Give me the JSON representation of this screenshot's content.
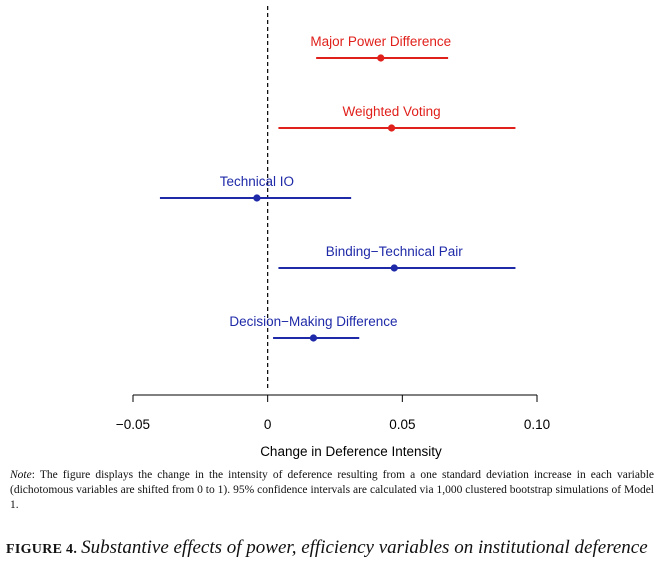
{
  "chart_data": {
    "type": "errorbar",
    "xlabel": "Change in Deference Intensity",
    "xlim": [
      -0.05,
      0.1
    ],
    "xticks": [
      -0.05,
      0,
      0.05,
      0.1
    ],
    "xtick_labels": [
      "−0.05",
      "0",
      "0.05",
      "0.10"
    ],
    "reference_line": 0,
    "series": [
      {
        "name": "Major Power Difference",
        "estimate": 0.042,
        "lower": 0.018,
        "upper": 0.067,
        "color": "#e0201b"
      },
      {
        "name": "Weighted Voting",
        "estimate": 0.046,
        "lower": 0.004,
        "upper": 0.092,
        "color": "#e0201b"
      },
      {
        "name": "Technical IO",
        "estimate": -0.004,
        "lower": -0.04,
        "upper": 0.031,
        "color": "#1f2aa8"
      },
      {
        "name": "Binding−Technical Pair",
        "estimate": 0.047,
        "lower": 0.004,
        "upper": 0.092,
        "color": "#1f2aa8"
      },
      {
        "name": "Decision−Making Difference",
        "estimate": 0.017,
        "lower": 0.002,
        "upper": 0.034,
        "color": "#1f2aa8"
      }
    ]
  },
  "note": {
    "label": "Note",
    "text": ": The figure displays the change in the intensity of deference resulting from a one standard deviation increase in each variable (dichotomous variables are shifted from 0 to 1). 95% confidence intervals are calculated via 1,000 clustered bootstrap simulations of Model 1."
  },
  "caption": {
    "label": "FIGURE 4.",
    "text": "Substantive effects of power, efficiency variables on institutional deference"
  }
}
